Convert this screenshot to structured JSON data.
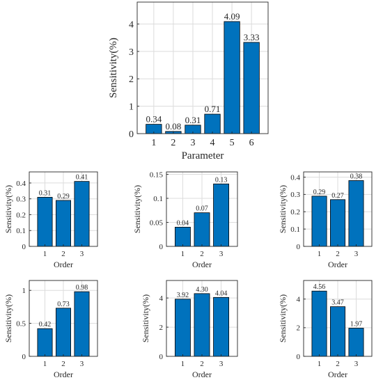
{
  "colors": {
    "bar": "#0072BD",
    "bar_edge": "#000000",
    "grid": "#dcdcdc",
    "axis": "#262626"
  },
  "chart_data": [
    {
      "type": "bar",
      "title": "",
      "xlabel": "Parameter",
      "ylabel": "Sensitivity(%)",
      "categories": [
        "1",
        "2",
        "3",
        "4",
        "5",
        "6"
      ],
      "values": [
        0.34,
        0.08,
        0.31,
        0.71,
        4.09,
        3.33
      ],
      "data_labels": [
        "0.34",
        "0.08",
        "0.31",
        "0.71",
        "4.09",
        "3.33"
      ],
      "ylim": [
        0,
        4.8
      ],
      "yticks": [
        0,
        1,
        2,
        3,
        4
      ],
      "ytick_labels": [
        "0",
        "1",
        "2",
        "3",
        "4"
      ],
      "grid": true
    },
    {
      "type": "bar",
      "title": "",
      "xlabel": "Order",
      "ylabel": "Sensitivity(%)",
      "categories": [
        "1",
        "2",
        "3"
      ],
      "values": [
        0.31,
        0.29,
        0.41
      ],
      "data_labels": [
        "0.31",
        "0.29",
        "0.41"
      ],
      "ylim": [
        0,
        0.47
      ],
      "yticks": [
        0,
        0.1,
        0.2,
        0.3,
        0.4
      ],
      "ytick_labels": [
        "0",
        "0.1",
        "0.2",
        "0.3",
        "0.4"
      ],
      "grid": true
    },
    {
      "type": "bar",
      "title": "",
      "xlabel": "Order",
      "ylabel": "Sensitivity(%)",
      "categories": [
        "1",
        "2",
        "3"
      ],
      "values": [
        0.04,
        0.07,
        0.13
      ],
      "data_labels": [
        "0.04",
        "0.07",
        "0.13"
      ],
      "ylim": [
        0,
        0.155
      ],
      "yticks": [
        0,
        0.05,
        0.1,
        0.15
      ],
      "ytick_labels": [
        "0",
        "0.05",
        "0.1",
        "0.15"
      ],
      "grid": true
    },
    {
      "type": "bar",
      "title": "",
      "xlabel": "Order",
      "ylabel": "Sensitivity(%)",
      "categories": [
        "1",
        "2",
        "3"
      ],
      "values": [
        0.29,
        0.27,
        0.38
      ],
      "data_labels": [
        "0.29",
        "0.27",
        "0.38"
      ],
      "ylim": [
        0,
        0.43
      ],
      "yticks": [
        0,
        0.1,
        0.2,
        0.3,
        0.4
      ],
      "ytick_labels": [
        "0",
        "0.1",
        "0.2",
        "0.3",
        "0.4"
      ],
      "grid": true
    },
    {
      "type": "bar",
      "title": "",
      "xlabel": "Order",
      "ylabel": "Sensitivity(%)",
      "categories": [
        "1",
        "2",
        "3"
      ],
      "values": [
        0.42,
        0.73,
        0.98
      ],
      "data_labels": [
        "0.42",
        "0.73",
        "0.98"
      ],
      "ylim": [
        0,
        1.15
      ],
      "yticks": [
        0,
        0.5,
        1
      ],
      "ytick_labels": [
        "0",
        "0.5",
        "1"
      ],
      "grid": true
    },
    {
      "type": "bar",
      "title": "",
      "xlabel": "Order",
      "ylabel": "Sensitivity(%)",
      "categories": [
        "1",
        "2",
        "3"
      ],
      "values": [
        3.92,
        4.3,
        4.04
      ],
      "data_labels": [
        "3.92",
        "4.30",
        "4.04"
      ],
      "ylim": [
        0,
        5.2
      ],
      "yticks": [
        0,
        2,
        4
      ],
      "ytick_labels": [
        "0",
        "2",
        "4"
      ],
      "grid": true
    },
    {
      "type": "bar",
      "title": "",
      "xlabel": "Order",
      "ylabel": "Sensitivity(%)",
      "categories": [
        "1",
        "2",
        "3"
      ],
      "values": [
        4.56,
        3.47,
        1.97
      ],
      "data_labels": [
        "4.56",
        "3.47",
        "1.97"
      ],
      "ylim": [
        0,
        5.3
      ],
      "yticks": [
        0,
        2,
        4
      ],
      "ytick_labels": [
        "0",
        "2",
        "4"
      ],
      "grid": true
    }
  ]
}
